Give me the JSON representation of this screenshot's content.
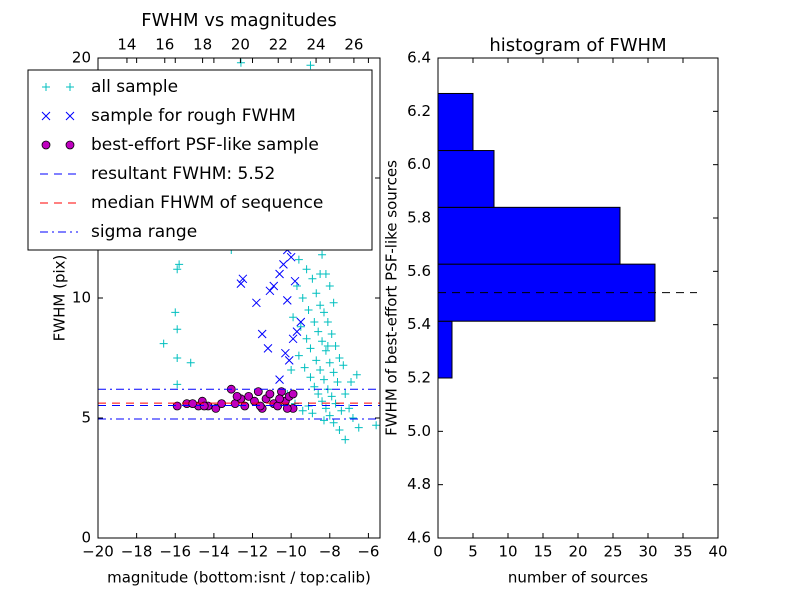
{
  "chart_data": [
    {
      "type": "scatter",
      "title": "FWHM vs magnitudes",
      "xlabel": "magnitude (bottom:isnt / top:calib)",
      "ylabel": "FWHM (pix)",
      "xlim": [
        -20,
        -5.4
      ],
      "xticks": [
        {
          "value": -20,
          "label": "−20"
        },
        {
          "value": -18,
          "label": "−18"
        },
        {
          "value": -16,
          "label": "−16"
        },
        {
          "value": -14,
          "label": "−14"
        },
        {
          "value": -12,
          "label": "−12"
        },
        {
          "value": -10,
          "label": "−10"
        },
        {
          "value": -8,
          "label": "−8"
        },
        {
          "value": -6,
          "label": "−6"
        }
      ],
      "x2lim": [
        12.47,
        27.38
      ],
      "x2ticks": [
        14,
        16,
        18,
        20,
        22,
        24,
        26
      ],
      "ylim": [
        0,
        20
      ],
      "yticks": [
        0,
        5,
        10,
        15,
        20
      ],
      "legend": "upper left",
      "series": [
        {
          "name": "all sample",
          "color": "#00bfbf",
          "marker": "+",
          "x": [
            -16.6,
            -16,
            -15.9,
            -15.9,
            -15.2,
            -15.9,
            -15.8,
            -15.9,
            -12.6,
            -9,
            -5.6,
            -7.2,
            -7.5,
            -13.1,
            -9.8,
            -9.5,
            -9.3,
            -9.0,
            -8.8,
            -8.6,
            -8.4,
            -8.2,
            -8.0,
            -7.8,
            -9.6,
            -9.2,
            -8.9,
            -8.7,
            -8.5,
            -8.3,
            -8.1,
            -7.9,
            -7.7,
            -7.5,
            -9.7,
            -9.4,
            -9.1,
            -8.8,
            -8.6,
            -8.4,
            -8.2,
            -8.0,
            -7.8,
            -7.6,
            -9.9,
            -9.5,
            -9.2,
            -9.0,
            -8.7,
            -8.5,
            -8.3,
            -8.1,
            -7.9,
            -7.7,
            -9.6,
            -9.3,
            -9.0,
            -8.8,
            -8.6,
            -8.4,
            -8.2,
            -8.0,
            -7.8,
            -7.4,
            -10.2,
            -10.5,
            -9.8,
            -9.4,
            -9.1,
            -8.9,
            -7.2,
            -7.0,
            -6.8,
            -6.5,
            -9.9,
            -8.7,
            -9.1,
            -8.5,
            -8.1,
            -10.0,
            -7.3,
            -6.9,
            -6.6,
            -8.3
          ],
          "y": [
            8.1,
            9.4,
            8.7,
            7.5,
            7.3,
            11.2,
            11.4,
            6.4,
            19.8,
            19.7,
            4.7,
            4.1,
            4.5,
            12.0,
            12.5,
            12.9,
            13.6,
            14.5,
            13.0,
            12.2,
            11.8,
            11.0,
            10.5,
            9.8,
            11.6,
            11.2,
            10.8,
            10.2,
            9.7,
            9.4,
            9.0,
            8.5,
            8.0,
            7.5,
            10.5,
            10.0,
            9.5,
            9.0,
            8.6,
            8.2,
            7.8,
            7.3,
            6.9,
            6.5,
            9.2,
            8.8,
            8.3,
            7.9,
            7.4,
            7.0,
            6.6,
            6.2,
            5.9,
            5.6,
            7.6,
            7.1,
            6.7,
            6.3,
            6.0,
            5.7,
            5.4,
            5.1,
            4.8,
            5.3,
            6.0,
            5.8,
            5.6,
            5.3,
            5.5,
            5.2,
            6.0,
            5.4,
            5.0,
            4.6,
            13.3,
            13.8,
            12.3,
            11.0,
            8.0,
            7.0,
            7.2,
            6.5,
            6.8,
            4.9
          ]
        },
        {
          "name": "sample for rough FWHM",
          "color": "#0000ff",
          "marker": "x",
          "x": [
            -12.6,
            -12.5,
            -11.8,
            -11.5,
            -11.2,
            -11.1,
            -10.4,
            -10.6,
            -10.0,
            -10.2,
            -10.1,
            -9.9,
            -9.7,
            -10.6,
            -9.5,
            -10.9,
            -10.2,
            -10.3,
            -9.8,
            -9.6
          ],
          "y": [
            10.6,
            10.8,
            9.8,
            8.5,
            7.9,
            10.3,
            11.4,
            11.0,
            11.7,
            12.0,
            7.4,
            8.3,
            8.6,
            6.6,
            9.0,
            10.5,
            9.9,
            7.7,
            10.7,
            12.8
          ]
        },
        {
          "name": "best-effort PSF-like sample",
          "color": "#bf00bf",
          "marker": "o",
          "x": [
            -15.9,
            -15.4,
            -14.8,
            -14.6,
            -14.3,
            -13.9,
            -13.6,
            -13.1,
            -12.9,
            -12.6,
            -12.4,
            -12.2,
            -11.9,
            -11.7,
            -11.5,
            -11.3,
            -11.1,
            -10.9,
            -10.7,
            -10.5,
            -10.3,
            -10.1,
            -9.9,
            -9.9,
            -10.2,
            -11.6,
            -12.8,
            -14.5,
            -15.1,
            -10.6
          ],
          "y": [
            5.5,
            5.6,
            5.5,
            5.7,
            5.5,
            5.4,
            5.6,
            6.2,
            5.6,
            5.8,
            5.5,
            5.9,
            5.7,
            6.1,
            5.4,
            5.8,
            6.0,
            5.6,
            5.5,
            6.1,
            5.7,
            5.9,
            5.4,
            6.0,
            5.4,
            5.5,
            5.9,
            5.5,
            5.6,
            5.8
          ]
        }
      ],
      "hlines": [
        {
          "name": "resultant FWHM: 5.52",
          "values": [
            5.52
          ],
          "color": "#0000ff",
          "style": "dashed"
        },
        {
          "name": "median FHWM of sequence",
          "values": [
            5.62
          ],
          "color": "#ff0000",
          "style": "dashed"
        },
        {
          "name": "sigma range",
          "values": [
            4.96,
            6.2
          ],
          "color": "#0000ff",
          "style": "dashdot"
        }
      ]
    },
    {
      "type": "histogram",
      "orientation": "horizontal",
      "title": "histogram of FWHM",
      "xlabel": "number of sources",
      "ylabel": "FWHM of best-effort PSF-like sources",
      "bins": [
        5.2,
        5.413,
        5.627,
        5.84,
        6.053,
        6.267
      ],
      "values": [
        2,
        31,
        26,
        8,
        5
      ],
      "color": "#0000ff",
      "xlim": [
        0,
        40
      ],
      "xticks": [
        0,
        5,
        10,
        15,
        20,
        25,
        30,
        35,
        40
      ],
      "ylim": [
        4.6,
        6.4
      ],
      "yticks": [
        4.6,
        4.8,
        {
          "value": 5,
          "label": "5.0"
        },
        5.2,
        5.4,
        5.6,
        5.8,
        {
          "value": 6,
          "label": "6.0"
        },
        6.2,
        6.4
      ],
      "hline": {
        "y": 5.52,
        "xmax": 37,
        "color": "#000000",
        "style": "dashed"
      }
    }
  ]
}
